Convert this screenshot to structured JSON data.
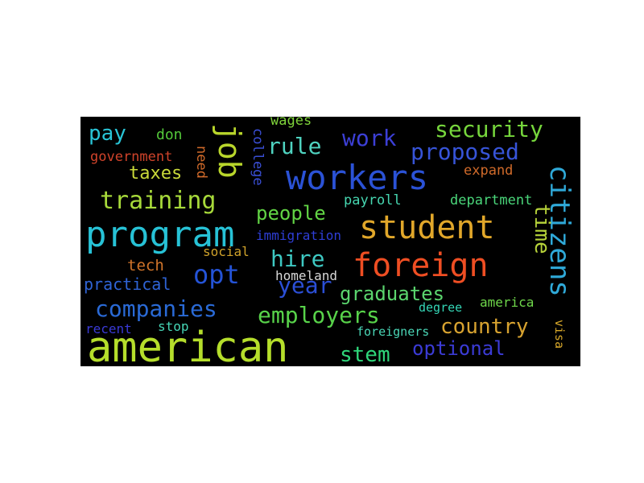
{
  "words": {
    "american": {
      "text": "american",
      "color": "#b5de2b"
    },
    "program": {
      "text": "program",
      "color": "#27c2d6"
    },
    "workers": {
      "text": "workers",
      "color": "#2b52d6"
    },
    "student": {
      "text": "student",
      "color": "#e1a72a"
    },
    "foreign": {
      "text": "foreign",
      "color": "#ef4e23"
    },
    "job": {
      "text": "job",
      "color": "#b9d62b"
    },
    "citizens": {
      "text": "citizens",
      "color": "#2fa9d8"
    },
    "opt": {
      "text": "opt",
      "color": "#2453d6"
    },
    "training": {
      "text": "training",
      "color": "#a7d93a"
    },
    "companies": {
      "text": "companies",
      "color": "#2a6ad6"
    },
    "employers": {
      "text": "employers",
      "color": "#58d34a"
    },
    "security": {
      "text": "security",
      "color": "#76d63c"
    },
    "proposed": {
      "text": "proposed",
      "color": "#3754d8"
    },
    "hire": {
      "text": "hire",
      "color": "#3ec9c3"
    },
    "rule": {
      "text": "rule",
      "color": "#4fd3c0"
    },
    "work": {
      "text": "work",
      "color": "#3c3fd6"
    },
    "year": {
      "text": "year",
      "color": "#2b4fd6"
    },
    "graduates": {
      "text": "graduates",
      "color": "#5bd66e"
    },
    "country": {
      "text": "country",
      "color": "#d8a330"
    },
    "optional": {
      "text": "optional",
      "color": "#3b3bd6"
    },
    "stem": {
      "text": "stem",
      "color": "#2fd67a"
    },
    "people": {
      "text": "people",
      "color": "#62d545"
    },
    "pay": {
      "text": "pay",
      "color": "#29c4d6"
    },
    "taxes": {
      "text": "taxes",
      "color": "#c9d93a"
    },
    "time": {
      "text": "time",
      "color": "#b7d33a"
    },
    "practical": {
      "text": "practical",
      "color": "#2f64d6"
    },
    "tech": {
      "text": "tech",
      "color": "#d0742a"
    },
    "don": {
      "text": "don",
      "color": "#54c83a"
    },
    "government": {
      "text": "government",
      "color": "#d0432a"
    },
    "need": {
      "text": "need",
      "color": "#d06a2a"
    },
    "college": {
      "text": "college",
      "color": "#3a4fd6"
    },
    "wages": {
      "text": "wages",
      "color": "#7ed33a"
    },
    "expand": {
      "text": "expand",
      "color": "#d06a2a"
    },
    "payroll": {
      "text": "payroll",
      "color": "#46d6b0"
    },
    "department": {
      "text": "department",
      "color": "#4ad67a"
    },
    "immigration": {
      "text": "immigration",
      "color": "#2e3ed6"
    },
    "social": {
      "text": "social",
      "color": "#d0a22a"
    },
    "homeland": {
      "text": "homeland",
      "color": "#d8d8d8"
    },
    "america": {
      "text": "america",
      "color": "#6ed64a"
    },
    "degree": {
      "text": "degree",
      "color": "#34d6b6"
    },
    "recent": {
      "text": "recent",
      "color": "#3a3ad6"
    },
    "stop": {
      "text": "stop",
      "color": "#46d6b6"
    },
    "foreigners": {
      "text": "foreigners",
      "color": "#4ad6b6"
    },
    "visa": {
      "text": "visa",
      "color": "#d8a82a"
    }
  }
}
